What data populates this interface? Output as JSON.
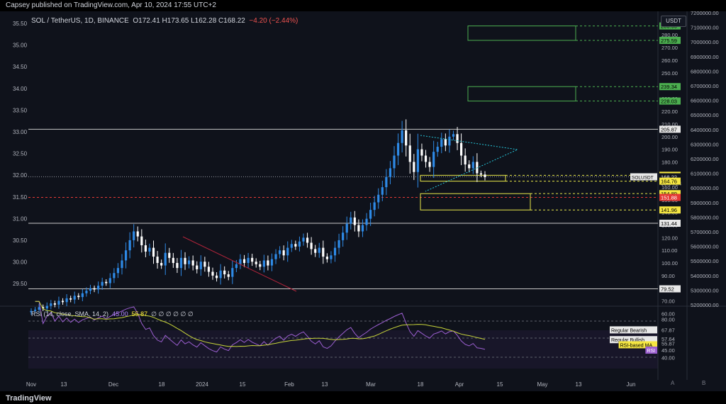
{
  "header": {
    "published": "Capsey published on TradingView.com, Apr 10, 2024 17:55 UTC+2",
    "symbol": "SOL / TetherUS, 1D, BINANCE",
    "ohlc": "O172.41  H173.65  L162.28  C168.22",
    "change": "−4.20 (−2.44%)"
  },
  "rsi_legend": {
    "label": "RSI (14, close, SMA, 14, 2)",
    "value": "45.00",
    "ma": "55.87",
    "extras": "∅ ∅ ∅ ∅ ∅ ∅"
  },
  "currency": "USDT",
  "footer": {
    "logo": "TradingView",
    "minibuttons": [
      "A",
      "B"
    ]
  },
  "colors": {
    "background": "#0f121b",
    "bull": "#2e8ae6",
    "bear": "#ffffff",
    "rsi": "#9c5fd1",
    "rsi_ma": "#c8d53a",
    "zone_green": "#4caf50",
    "zone_yellow": "#e8e84a"
  },
  "chart_data": {
    "type": "candlestick",
    "title": "SOL / TetherUS, 1D, BINANCE",
    "x_ticks": [
      "Nov",
      "13",
      "Dec",
      "18",
      "2024",
      "15",
      "Feb",
      "13",
      "Mar",
      "18",
      "Apr",
      "15",
      "May",
      "13",
      "Jun"
    ],
    "left_axis": [
      "35.50",
      "35.00",
      "34.50",
      "34.00",
      "33.50",
      "33.00",
      "32.50",
      "32.00",
      "31.50",
      "31.00",
      "30.50",
      "30.00",
      "29.50"
    ],
    "right_axis_price": [
      "210.00",
      "200.00",
      "190.00",
      "180.00",
      "170.00",
      "160.00",
      "150.00",
      "140.00",
      "130.00",
      "120.00",
      "110.00",
      "100.00",
      "90.00",
      "80.00",
      "70.00",
      "60.00"
    ],
    "right_axis_price_upper": [
      "290.00",
      "280.00",
      "270.00",
      "260.00",
      "250.00",
      "240.00",
      "230.00",
      "220.00"
    ],
    "far_right_axis": [
      "7200000.00",
      "7100000.00",
      "7000000.00",
      "6900000.00",
      "6800000.00",
      "6700000.00",
      "6600000.00",
      "6500000.00",
      "6400000.00",
      "6300000.00",
      "6200000.00",
      "6100000.00",
      "6000000.00",
      "5900000.00",
      "5800000.00",
      "5700000.00",
      "5600000.00",
      "5500000.00",
      "5400000.00",
      "5300000.00",
      "5200000.00"
    ],
    "price_labels": [
      {
        "text": "286.90",
        "kind": "green"
      },
      {
        "text": "275.59",
        "kind": "green"
      },
      {
        "text": "239.34",
        "kind": "green"
      },
      {
        "text": "228.03",
        "kind": "green"
      },
      {
        "text": "205.87",
        "kind": "white"
      },
      {
        "text": "169.40",
        "kind": "yellow"
      },
      {
        "text": "168.22",
        "kind": "current"
      },
      {
        "text": "08:04:24",
        "kind": "timer"
      },
      {
        "text": "164.76",
        "kind": "yellow"
      },
      {
        "text": "154.89",
        "kind": "yellow"
      },
      {
        "text": "151.88",
        "kind": "red"
      },
      {
        "text": "141.96",
        "kind": "yellow"
      },
      {
        "text": "131.44",
        "kind": "white"
      },
      {
        "text": "79.52",
        "kind": "white"
      }
    ],
    "symbol_tag": "SOLUSDT",
    "levels": [
      205.87,
      131.44,
      79.52,
      151.88,
      168.22
    ],
    "zones": [
      {
        "top": 286.9,
        "bottom": 275.59,
        "kind": "green"
      },
      {
        "top": 239.34,
        "bottom": 228.03,
        "kind": "green"
      },
      {
        "top": 169.4,
        "bottom": 164.76,
        "kind": "yellow"
      },
      {
        "top": 154.89,
        "bottom": 141.96,
        "kind": "yellow"
      }
    ],
    "candles": [
      62,
      63,
      65,
      64,
      66,
      68,
      67,
      70,
      69,
      72,
      71,
      74,
      73,
      76,
      78,
      80,
      79,
      82,
      85,
      84,
      88,
      92,
      96,
      102,
      110,
      118,
      125,
      121,
      114,
      109,
      112,
      105,
      100,
      98,
      108,
      104,
      100,
      96,
      104,
      99,
      102,
      98,
      95,
      101,
      97,
      93,
      90,
      88,
      94,
      91,
      89,
      96,
      99,
      103,
      100,
      104,
      101,
      99,
      97,
      102,
      98,
      103,
      107,
      110,
      106,
      112,
      115,
      113,
      117,
      120,
      116,
      111,
      108,
      112,
      105,
      103,
      106,
      112,
      118,
      124,
      131,
      136,
      130,
      125,
      130,
      135,
      142,
      148,
      154,
      160,
      168,
      175,
      185,
      195,
      205,
      193,
      180,
      172,
      190,
      185,
      180,
      176,
      188,
      192,
      198,
      193,
      200,
      202,
      195,
      185,
      178,
      175,
      180,
      171,
      170,
      168
    ],
    "rsi_axis": [
      "80.00",
      "67.87",
      "57.64",
      "55.87",
      "45.00",
      "40.00"
    ],
    "rsi_labels": [
      {
        "text": "Regular Bearish",
        "value": "67.87"
      },
      {
        "text": "Regular Bullish",
        "value": "57.64"
      },
      {
        "text": "RSI-based MA",
        "value": "55.87"
      },
      {
        "text": "RSI",
        "value": "45.00"
      }
    ]
  }
}
